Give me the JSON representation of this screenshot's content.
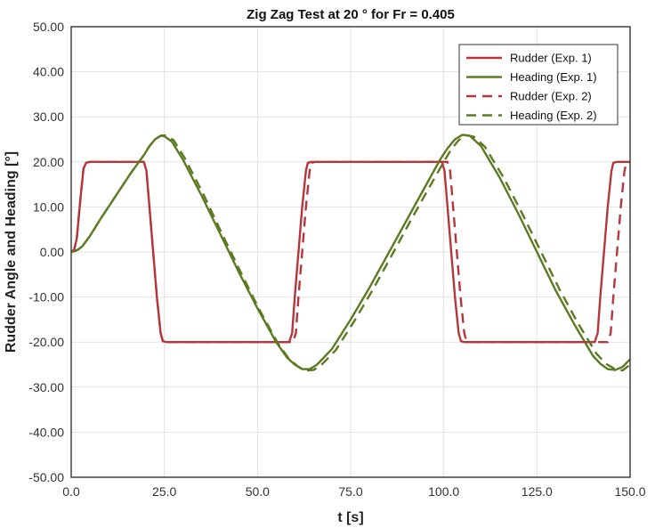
{
  "chart_data": {
    "type": "line",
    "title": "Zig Zag Test at 20 ° for Fr = 0.405",
    "xlabel": "t [s]",
    "ylabel": "Rudder Angle and Heading [°]",
    "xlim": [
      0,
      150
    ],
    "ylim": [
      -50,
      50
    ],
    "x_ticks": [
      "0.0",
      "25.0",
      "50.0",
      "75.0",
      "100.0",
      "125.0",
      "150.0"
    ],
    "y_ticks": [
      "50.00",
      "40.00",
      "30.00",
      "20.00",
      "10.00",
      "0.00",
      "-10.00",
      "-20.00",
      "-30.00",
      "-40.00",
      "-50.00"
    ],
    "grid": true,
    "legend_position": "top-right",
    "colors": {
      "rudder": "#b5373e",
      "heading": "#5b7a22",
      "grid": "#e2e2e2",
      "axis": "#333333"
    },
    "series": [
      {
        "name": "Rudder (Exp. 1)",
        "color": "#b5373e",
        "dashed": false,
        "width": 2.4,
        "points": [
          [
            0,
            0
          ],
          [
            0.8,
            0.5
          ],
          [
            1.5,
            3
          ],
          [
            2.5,
            12
          ],
          [
            3.3,
            18.5
          ],
          [
            4,
            19.8
          ],
          [
            5,
            20
          ],
          [
            19.5,
            20
          ],
          [
            20.2,
            18
          ],
          [
            21,
            10
          ],
          [
            22,
            0
          ],
          [
            23,
            -10
          ],
          [
            24,
            -18
          ],
          [
            24.6,
            -19.8
          ],
          [
            25.5,
            -20
          ],
          [
            58.5,
            -20
          ],
          [
            59.3,
            -18
          ],
          [
            60,
            -10
          ],
          [
            61,
            0
          ],
          [
            62,
            10
          ],
          [
            63,
            18
          ],
          [
            63.5,
            19.8
          ],
          [
            64.5,
            20
          ],
          [
            99.5,
            20
          ],
          [
            100.2,
            18
          ],
          [
            101,
            10
          ],
          [
            102,
            0
          ],
          [
            103,
            -10
          ],
          [
            104,
            -18
          ],
          [
            104.6,
            -19.8
          ],
          [
            105.5,
            -20
          ],
          [
            140.5,
            -20
          ],
          [
            141.3,
            -18
          ],
          [
            142,
            -10
          ],
          [
            143,
            0
          ],
          [
            144,
            10
          ],
          [
            145,
            18
          ],
          [
            145.5,
            19.8
          ],
          [
            146.5,
            20
          ],
          [
            150,
            20
          ]
        ]
      },
      {
        "name": "Heading (Exp. 1)",
        "color": "#5b7a22",
        "dashed": false,
        "width": 2.4,
        "points": [
          [
            0,
            0
          ],
          [
            1,
            0.2
          ],
          [
            2,
            0.6
          ],
          [
            3,
            1.3
          ],
          [
            5,
            3.5
          ],
          [
            8,
            7.5
          ],
          [
            12,
            12.5
          ],
          [
            16,
            17.5
          ],
          [
            19.5,
            21.5
          ],
          [
            21,
            23.5
          ],
          [
            22.5,
            25
          ],
          [
            24,
            25.8
          ],
          [
            25,
            25.7
          ],
          [
            27,
            24.5
          ],
          [
            30,
            20.5
          ],
          [
            35,
            12.5
          ],
          [
            40,
            4
          ],
          [
            45,
            -4.5
          ],
          [
            50,
            -12.5
          ],
          [
            55,
            -20
          ],
          [
            58,
            -23.5
          ],
          [
            60,
            -25
          ],
          [
            62,
            -26
          ],
          [
            64,
            -26
          ],
          [
            66,
            -25
          ],
          [
            70,
            -21.5
          ],
          [
            75,
            -15
          ],
          [
            80,
            -8
          ],
          [
            85,
            -0.5
          ],
          [
            90,
            7
          ],
          [
            95,
            14.5
          ],
          [
            99,
            20.5
          ],
          [
            101,
            23
          ],
          [
            103,
            25
          ],
          [
            105,
            26
          ],
          [
            107,
            25.8
          ],
          [
            110,
            23.5
          ],
          [
            115,
            16.5
          ],
          [
            120,
            8.5
          ],
          [
            125,
            0
          ],
          [
            130,
            -8.5
          ],
          [
            135,
            -16
          ],
          [
            140,
            -23
          ],
          [
            142,
            -24.8
          ],
          [
            144,
            -26
          ],
          [
            146,
            -26.2
          ],
          [
            148,
            -25.5
          ],
          [
            150,
            -23.8
          ]
        ]
      },
      {
        "name": "Rudder (Exp. 2)",
        "color": "#b5373e",
        "dashed": true,
        "width": 2.4,
        "points": [
          [
            0,
            0
          ],
          [
            0.8,
            0.5
          ],
          [
            1.5,
            3
          ],
          [
            2.5,
            12
          ],
          [
            3.3,
            18.5
          ],
          [
            4,
            19.8
          ],
          [
            5,
            20
          ],
          [
            19.5,
            20
          ],
          [
            20.2,
            18
          ],
          [
            21,
            10
          ],
          [
            22,
            0
          ],
          [
            23,
            -10
          ],
          [
            24,
            -18
          ],
          [
            24.6,
            -19.8
          ],
          [
            25.5,
            -20
          ],
          [
            59.5,
            -20
          ],
          [
            60.3,
            -18
          ],
          [
            61,
            -10
          ],
          [
            62,
            0
          ],
          [
            63,
            10
          ],
          [
            64,
            18
          ],
          [
            64.5,
            19.8
          ],
          [
            65.5,
            20
          ],
          [
            101,
            20
          ],
          [
            101.7,
            18
          ],
          [
            102.5,
            10
          ],
          [
            103.5,
            0
          ],
          [
            104.5,
            -10
          ],
          [
            105.5,
            -18
          ],
          [
            106.1,
            -19.8
          ],
          [
            107,
            -20
          ],
          [
            144,
            -20
          ],
          [
            144.8,
            -18
          ],
          [
            145.5,
            -10
          ],
          [
            146.5,
            0
          ],
          [
            147.5,
            10
          ],
          [
            148.5,
            18
          ],
          [
            149,
            19.8
          ],
          [
            150,
            20
          ]
        ]
      },
      {
        "name": "Heading (Exp. 2)",
        "color": "#5b7a22",
        "dashed": true,
        "width": 2.4,
        "points": [
          [
            0,
            0
          ],
          [
            1,
            0.2
          ],
          [
            2,
            0.6
          ],
          [
            3,
            1.3
          ],
          [
            5,
            3.5
          ],
          [
            8,
            7.5
          ],
          [
            12,
            12.5
          ],
          [
            16,
            17.5
          ],
          [
            19.5,
            21.5
          ],
          [
            21,
            23.5
          ],
          [
            22.5,
            25
          ],
          [
            24,
            25.8
          ],
          [
            25.5,
            25.9
          ],
          [
            27.5,
            24.8
          ],
          [
            30.5,
            20.8
          ],
          [
            35.5,
            12.8
          ],
          [
            40.5,
            4
          ],
          [
            45.5,
            -4.5
          ],
          [
            50.5,
            -12.8
          ],
          [
            55.5,
            -20.3
          ],
          [
            58.5,
            -23.8
          ],
          [
            61,
            -25.5
          ],
          [
            63,
            -26.3
          ],
          [
            65,
            -26.2
          ],
          [
            67,
            -25.2
          ],
          [
            71,
            -21.8
          ],
          [
            76,
            -15.3
          ],
          [
            81,
            -8.3
          ],
          [
            86,
            -0.8
          ],
          [
            91,
            6.8
          ],
          [
            96,
            14.2
          ],
          [
            100,
            20
          ],
          [
            102,
            22.8
          ],
          [
            104,
            24.8
          ],
          [
            106,
            25.9
          ],
          [
            108,
            25.6
          ],
          [
            111,
            23.4
          ],
          [
            116,
            16.6
          ],
          [
            121,
            8.6
          ],
          [
            126,
            0.2
          ],
          [
            131,
            -8.2
          ],
          [
            136,
            -15.8
          ],
          [
            141,
            -22.6
          ],
          [
            143.5,
            -24.8
          ],
          [
            146,
            -26
          ],
          [
            148,
            -26.3
          ],
          [
            150,
            -25
          ]
        ]
      }
    ]
  }
}
